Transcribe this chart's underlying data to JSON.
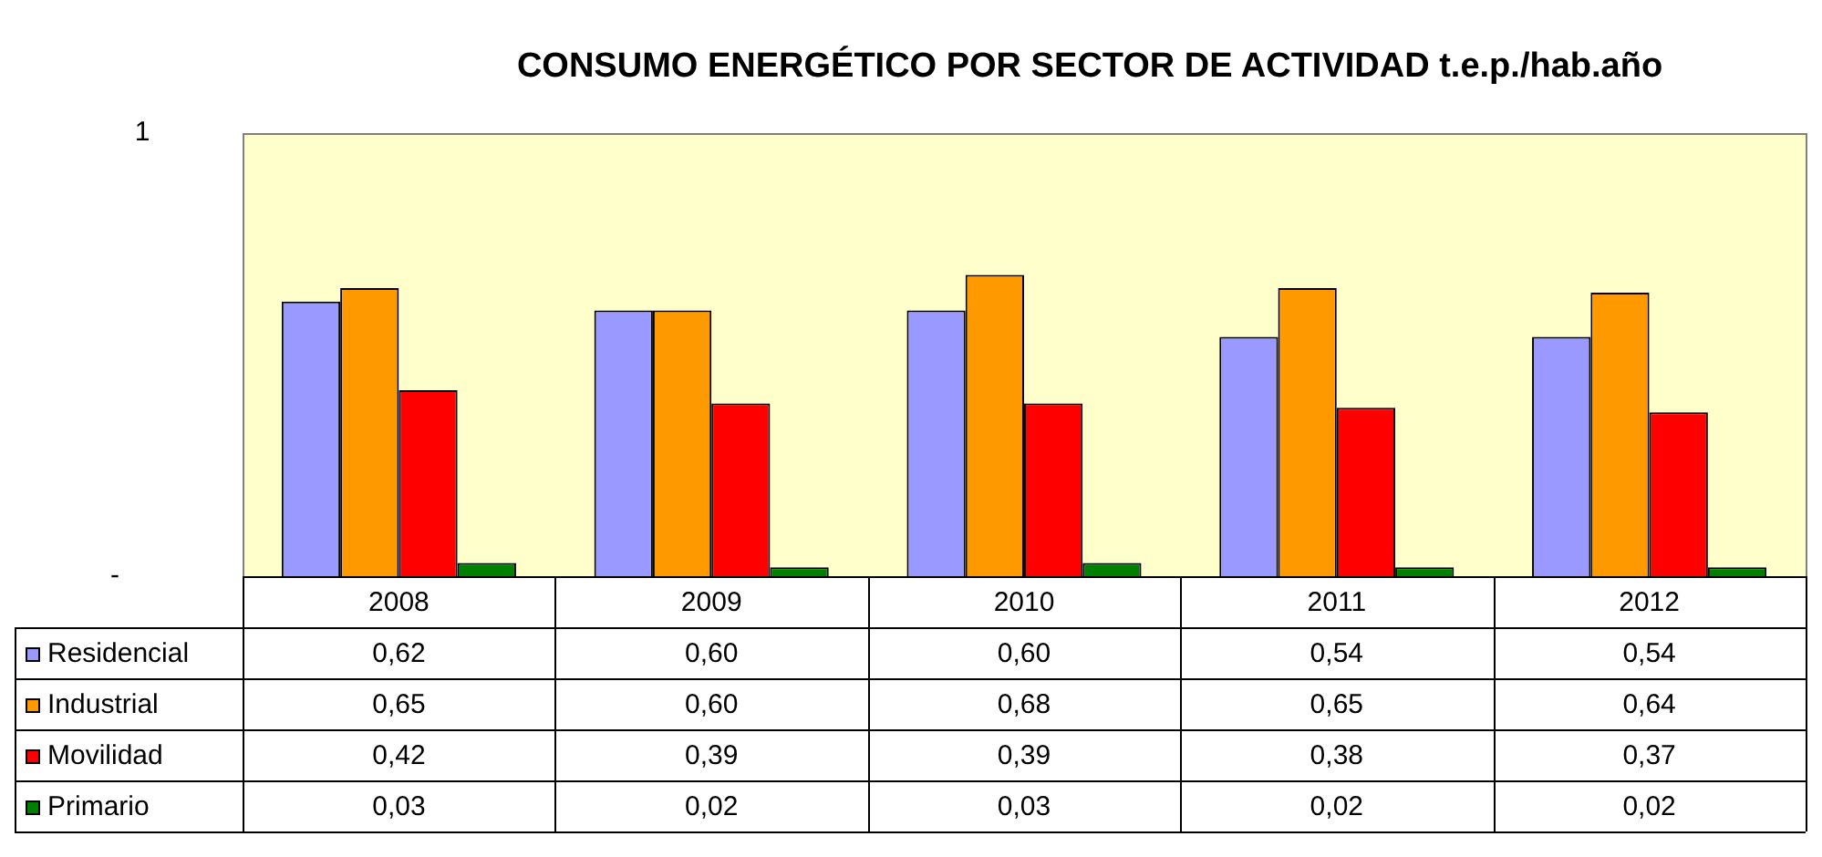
{
  "chart_data": {
    "type": "bar",
    "title": "CONSUMO ENERGÉTICO POR SECTOR DE ACTIVIDAD t.e.p./hab.año",
    "categories": [
      "2008",
      "2009",
      "2010",
      "2011",
      "2012"
    ],
    "series": [
      {
        "name": "Residencial",
        "color": "#9999ff",
        "values": [
          0.62,
          0.6,
          0.6,
          0.54,
          0.54
        ],
        "value_labels": [
          "0,62",
          "0,60",
          "0,60",
          "0,54",
          "0,54"
        ]
      },
      {
        "name": "Industrial",
        "color": "#ff9900",
        "values": [
          0.65,
          0.6,
          0.68,
          0.65,
          0.64
        ],
        "value_labels": [
          "0,65",
          "0,60",
          "0,68",
          "0,65",
          "0,64"
        ]
      },
      {
        "name": "Movilidad",
        "color": "#ff0000",
        "values": [
          0.42,
          0.39,
          0.39,
          0.38,
          0.37
        ],
        "value_labels": [
          "0,42",
          "0,39",
          "0,39",
          "0,38",
          "0,37"
        ]
      },
      {
        "name": "Primario",
        "color": "#008000",
        "values": [
          0.03,
          0.02,
          0.03,
          0.02,
          0.02
        ],
        "value_labels": [
          "0,03",
          "0,02",
          "0,03",
          "0,02",
          "0,02"
        ]
      }
    ],
    "ylim": [
      0,
      1
    ],
    "annotations": [
      "1",
      "-"
    ],
    "legend": "bottom left"
  }
}
